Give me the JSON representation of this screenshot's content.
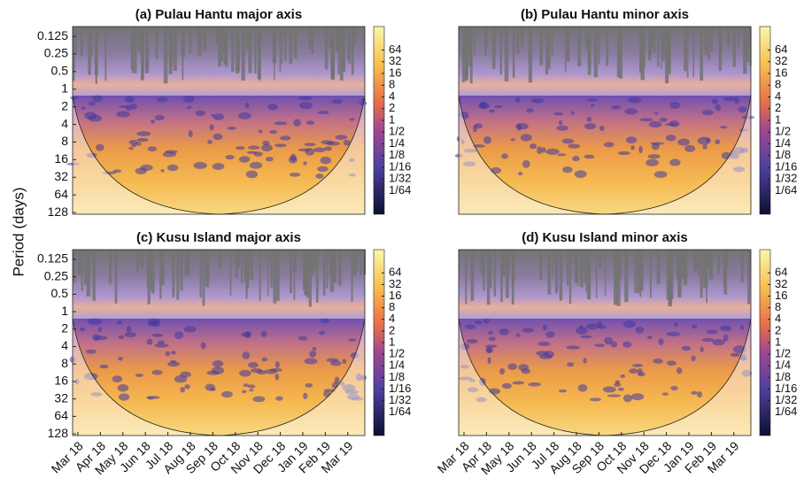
{
  "figure": {
    "ylabel": "Period (days)"
  },
  "chart_data": [
    {
      "type": "heatmap",
      "title": "(a) Pulau Hantu major axis",
      "ylim": [
        0.085,
        137
      ],
      "log_y": true,
      "yticks": [
        0.125,
        0.25,
        0.5,
        1,
        2,
        4,
        8,
        16,
        32,
        64,
        128
      ],
      "clim": [
        0.00390625,
        256
      ],
      "cticks": [
        64,
        32,
        16,
        8,
        4,
        2,
        1,
        {
          "value": 0.5,
          "label": "1/2"
        },
        {
          "value": 0.25,
          "label": "1/4"
        },
        {
          "value": 0.125,
          "label": "1/8"
        },
        {
          "value": 0.0625,
          "label": "1/16"
        },
        {
          "value": 0.03125,
          "label": "1/32"
        },
        {
          "value": 0.015625,
          "label": "1/64"
        }
      ]
    },
    {
      "type": "heatmap",
      "title": "(b) Pulau Hantu minor axis",
      "ylim": [
        0.085,
        137
      ],
      "log_y": true,
      "clim": [
        0.00390625,
        256
      ],
      "cticks": [
        64,
        32,
        16,
        8,
        4,
        2,
        1,
        {
          "value": 0.5,
          "label": "1/2"
        },
        {
          "value": 0.25,
          "label": "1/4"
        },
        {
          "value": 0.125,
          "label": "1/8"
        },
        {
          "value": 0.0625,
          "label": "1/16"
        },
        {
          "value": 0.03125,
          "label": "1/32"
        },
        {
          "value": 0.015625,
          "label": "1/64"
        }
      ]
    },
    {
      "type": "heatmap",
      "title": "(c) Kusu Island major axis",
      "ylim": [
        0.085,
        137
      ],
      "log_y": true,
      "yticks": [
        0.125,
        0.25,
        0.5,
        1,
        2,
        4,
        8,
        16,
        32,
        64,
        128
      ],
      "categories": [
        "Mar 18",
        "Apr 18",
        "May 18",
        "Jun 18",
        "Jul 18",
        "Aug 18",
        "Sep 18",
        "Oct 18",
        "Nov 18",
        "Dec 18",
        "Jan 19",
        "Feb 19",
        "Mar 19"
      ],
      "clim": [
        0.00390625,
        256
      ],
      "cticks": [
        64,
        32,
        16,
        8,
        4,
        2,
        1,
        {
          "value": 0.5,
          "label": "1/2"
        },
        {
          "value": 0.25,
          "label": "1/4"
        },
        {
          "value": 0.125,
          "label": "1/8"
        },
        {
          "value": 0.0625,
          "label": "1/16"
        },
        {
          "value": 0.03125,
          "label": "1/32"
        },
        {
          "value": 0.015625,
          "label": "1/64"
        }
      ]
    },
    {
      "type": "heatmap",
      "title": "(d) Kusu Island minor axis",
      "ylim": [
        0.085,
        137
      ],
      "log_y": true,
      "categories": [
        "Mar 18",
        "Apr 18",
        "May 18",
        "Jun 18",
        "Jul 18",
        "Aug 18",
        "Sep 18",
        "Oct 18",
        "Nov 18",
        "Dec 18",
        "Jan 19",
        "Feb 19",
        "Mar 19"
      ],
      "clim": [
        0.00390625,
        256
      ],
      "cticks": [
        64,
        32,
        16,
        8,
        4,
        2,
        1,
        {
          "value": 0.5,
          "label": "1/2"
        },
        {
          "value": 0.25,
          "label": "1/4"
        },
        {
          "value": 0.125,
          "label": "1/8"
        },
        {
          "value": 0.0625,
          "label": "1/16"
        },
        {
          "value": 0.03125,
          "label": "1/32"
        },
        {
          "value": 0.015625,
          "label": "1/64"
        }
      ]
    }
  ]
}
